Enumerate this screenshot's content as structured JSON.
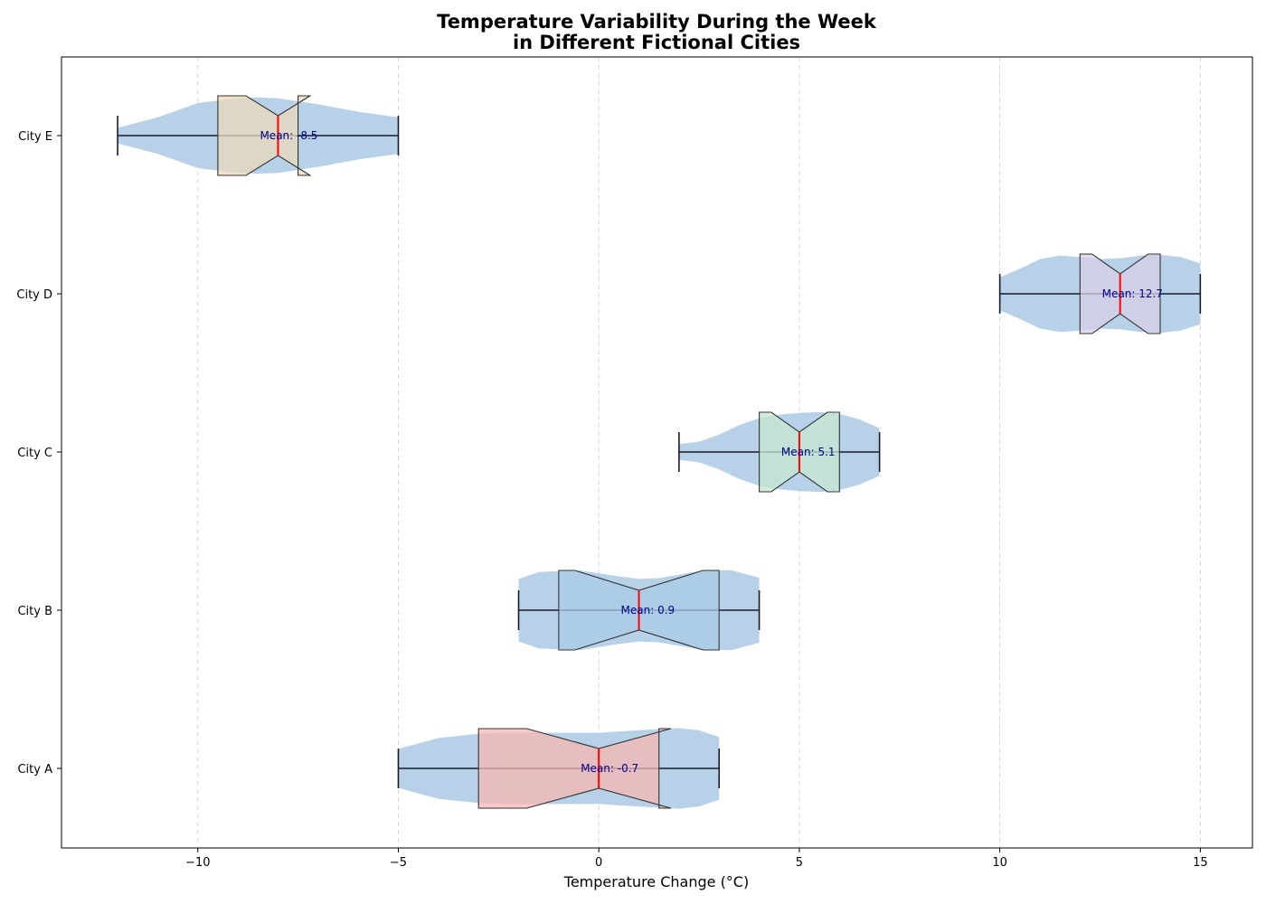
{
  "chart_data": {
    "type": "violin+box",
    "title_lines": [
      "Temperature Variability During the Week",
      "in Different Fictional Cities"
    ],
    "xlabel": "Temperature Change (°C)",
    "ylabel": "",
    "xlim": [
      -13.4,
      16.3
    ],
    "xticks": [
      -10,
      -5,
      0,
      5,
      10,
      15
    ],
    "xtick_labels": [
      "−10",
      "−5",
      "0",
      "5",
      "10",
      "15"
    ],
    "grid": "x-dashed",
    "violin_color": "#b7d2e8",
    "categories": [
      "City A",
      "City B",
      "City C",
      "City D",
      "City E"
    ],
    "series": [
      {
        "category": "City A",
        "box_color": "#f5b7b3",
        "min": -5,
        "max": 3,
        "q1": -3,
        "median": 0,
        "q3": 1.5,
        "notch_low": -1.8,
        "notch_high": 1.8,
        "mean_label": "Mean: -0.7",
        "violin_profile": [
          [
            -5,
            0.45
          ],
          [
            -4,
            0.7
          ],
          [
            -3,
            0.8
          ],
          [
            -2,
            0.83
          ],
          [
            -1,
            0.82
          ],
          [
            0,
            0.82
          ],
          [
            1,
            0.88
          ],
          [
            2,
            0.93
          ],
          [
            2.5,
            0.88
          ],
          [
            3,
            0.72
          ]
        ]
      },
      {
        "category": "City B",
        "box_color": "#a9c9e6",
        "min": -2,
        "max": 4,
        "q1": -1,
        "median": 1,
        "q3": 3,
        "notch_low": -0.6,
        "notch_high": 2.6,
        "mean_label": "Mean: 0.9",
        "violin_profile": [
          [
            -2,
            0.72
          ],
          [
            -1.5,
            0.88
          ],
          [
            -0.5,
            0.92
          ],
          [
            0.5,
            0.78
          ],
          [
            1,
            0.72
          ],
          [
            1.5,
            0.74
          ],
          [
            2.5,
            0.9
          ],
          [
            3.3,
            0.92
          ],
          [
            4,
            0.75
          ]
        ]
      },
      {
        "category": "City C",
        "box_color": "#c6e5d1",
        "min": 2,
        "max": 7,
        "q1": 4,
        "median": 5,
        "q3": 6,
        "notch_low": 4.3,
        "notch_high": 5.7,
        "mean_label": "Mean: 5.1",
        "violin_profile": [
          [
            2,
            0.18
          ],
          [
            2.5,
            0.24
          ],
          [
            3,
            0.4
          ],
          [
            3.5,
            0.62
          ],
          [
            4,
            0.78
          ],
          [
            4.5,
            0.86
          ],
          [
            5,
            0.9
          ],
          [
            5.5,
            0.92
          ],
          [
            6,
            0.88
          ],
          [
            6.5,
            0.75
          ],
          [
            7,
            0.55
          ]
        ]
      },
      {
        "category": "City D",
        "box_color": "#d8cde8",
        "min": 10,
        "max": 15,
        "q1": 12,
        "median": 13,
        "q3": 14,
        "notch_low": 12.3,
        "notch_high": 13.7,
        "mean_label": "Mean: 12.7",
        "violin_profile": [
          [
            10,
            0.38
          ],
          [
            10.5,
            0.58
          ],
          [
            11,
            0.8
          ],
          [
            11.5,
            0.88
          ],
          [
            12,
            0.85
          ],
          [
            12.5,
            0.8
          ],
          [
            13,
            0.82
          ],
          [
            13.5,
            0.88
          ],
          [
            14,
            0.9
          ],
          [
            14.5,
            0.85
          ],
          [
            15,
            0.7
          ]
        ]
      },
      {
        "category": "City E",
        "box_color": "#ecd8b9",
        "min": -12,
        "max": -5,
        "q1": -9.5,
        "median": -8,
        "q3": -7.5,
        "notch_low": -8.8,
        "notch_high": -7.2,
        "mean_label": "Mean: -8.5",
        "violin_profile": [
          [
            -12,
            0.18
          ],
          [
            -11,
            0.42
          ],
          [
            -10,
            0.75
          ],
          [
            -9,
            0.86
          ],
          [
            -8.5,
            0.88
          ],
          [
            -8,
            0.86
          ],
          [
            -7,
            0.72
          ],
          [
            -6,
            0.55
          ],
          [
            -5,
            0.42
          ]
        ]
      }
    ]
  }
}
